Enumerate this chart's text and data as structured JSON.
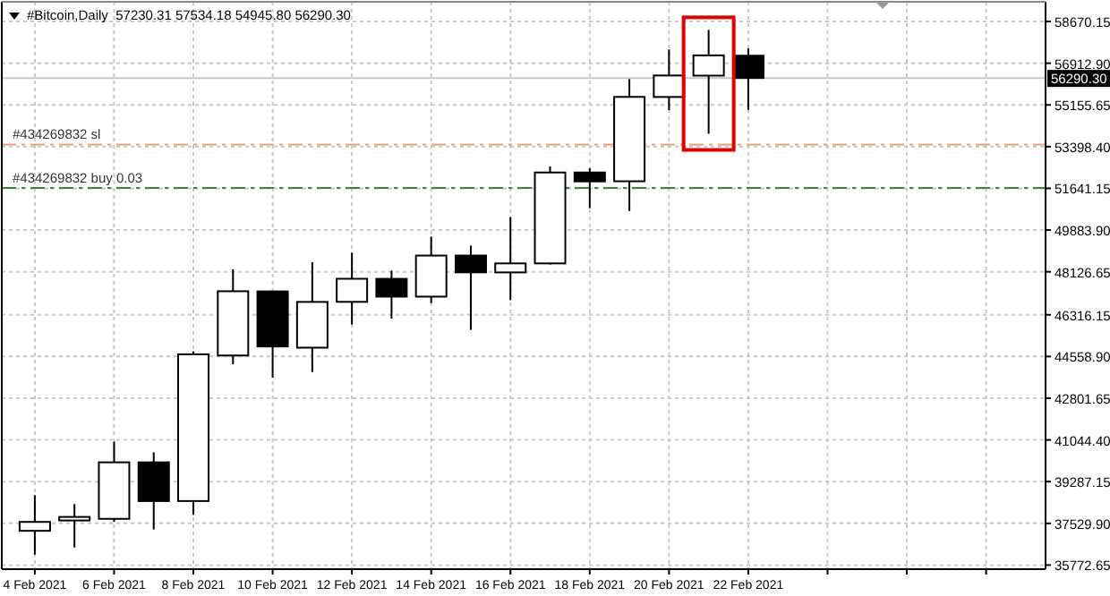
{
  "chart_data": {
    "type": "candlestick",
    "title": "#Bitcoin,Daily  57230.31 57534.18 54945.80 56290.30",
    "x": [
      "2021-02-04",
      "2021-02-05",
      "2021-02-06",
      "2021-02-07",
      "2021-02-08",
      "2021-02-09",
      "2021-02-10",
      "2021-02-11",
      "2021-02-12",
      "2021-02-13",
      "2021-02-14",
      "2021-02-15",
      "2021-02-16",
      "2021-02-17",
      "2021-02-18",
      "2021-02-19",
      "2021-02-20",
      "2021-02-21",
      "2021-02-22"
    ],
    "ohlc": [
      [
        37215,
        38716,
        36215,
        37590
      ],
      [
        37650,
        38340,
        36516,
        37800
      ],
      [
        37720,
        40970,
        37590,
        40100
      ],
      [
        40100,
        40520,
        37270,
        38468
      ],
      [
        38470,
        44777,
        37890,
        44650
      ],
      [
        44600,
        48231,
        44228,
        47307
      ],
      [
        47300,
        47330,
        43673,
        44980
      ],
      [
        44930,
        48532,
        43900,
        46857
      ],
      [
        46860,
        48930,
        45903,
        47833
      ],
      [
        47830,
        48180,
        46150,
        47080
      ],
      [
        47080,
        49606,
        46805,
        48810
      ],
      [
        48810,
        49230,
        45678,
        48103
      ],
      [
        48100,
        50432,
        46931,
        48480
      ],
      [
        48480,
        52565,
        48434,
        52310
      ],
      [
        52310,
        52490,
        50807,
        51934
      ],
      [
        51940,
        56245,
        50687,
        55494
      ],
      [
        55490,
        57491,
        54938,
        56395
      ],
      [
        56390,
        58317,
        53939,
        57243
      ],
      [
        57230.31,
        57534.18,
        54945.8,
        56290.3
      ]
    ],
    "xlim": [
      "2021-02-03T04:00",
      "2021-03-01T12:00"
    ],
    "xticks": [
      {
        "value": "2021-02-04",
        "label": "4 Feb 2021"
      },
      {
        "value": "2021-02-06",
        "label": "6 Feb 2021"
      },
      {
        "value": "2021-02-08",
        "label": "8 Feb 2021"
      },
      {
        "value": "2021-02-10",
        "label": "10 Feb 2021"
      },
      {
        "value": "2021-02-12",
        "label": "12 Feb 2021"
      },
      {
        "value": "2021-02-14",
        "label": "14 Feb 2021"
      },
      {
        "value": "2021-02-16",
        "label": "16 Feb 2021"
      },
      {
        "value": "2021-02-18",
        "label": "18 Feb 2021"
      },
      {
        "value": "2021-02-20",
        "label": "20 Feb 2021"
      },
      {
        "value": "2021-02-22",
        "label": "22 Feb 2021"
      },
      {
        "value": "2021-02-24",
        "label": null
      },
      {
        "value": "2021-02-26",
        "label": null
      },
      {
        "value": "2021-02-28",
        "label": null
      }
    ],
    "ylim": [
      35600,
      59500
    ],
    "yticks": [
      {
        "value": 58670.15,
        "label": "58670.15"
      },
      {
        "value": 56912.9,
        "label": "56912.90"
      },
      {
        "value": 55155.65,
        "label": "55155.65"
      },
      {
        "value": 53398.4,
        "label": "53398.40"
      },
      {
        "value": 51641.15,
        "label": "51641.15"
      },
      {
        "value": 49883.9,
        "label": "49883.90"
      },
      {
        "value": 48126.65,
        "label": "48126.65"
      },
      {
        "value": 46316.15,
        "label": "46316.15"
      },
      {
        "value": 44558.9,
        "label": "44558.90"
      },
      {
        "value": 42801.65,
        "label": "42801.65"
      },
      {
        "value": 41044.4,
        "label": "41044.40"
      },
      {
        "value": 39287.15,
        "label": "39287.15"
      },
      {
        "value": 37529.9,
        "label": "37529.90"
      },
      {
        "value": 35772.65,
        "label": "35772.65"
      }
    ],
    "grid": true,
    "ref_lines": [
      {
        "axis": "y",
        "value": 53488,
        "label": "#434269832 sl",
        "color": "#e8a07a",
        "line_style": "dashed"
      },
      {
        "axis": "y",
        "value": 51663,
        "label": "#434269832 buy 0.03",
        "color": "#2e8b2e",
        "line_style": "dashed"
      },
      {
        "axis": "y",
        "value": 56290.3,
        "label": "56290.30",
        "color": "#c8c8c8",
        "line_style": "solid"
      }
    ]
  }
}
